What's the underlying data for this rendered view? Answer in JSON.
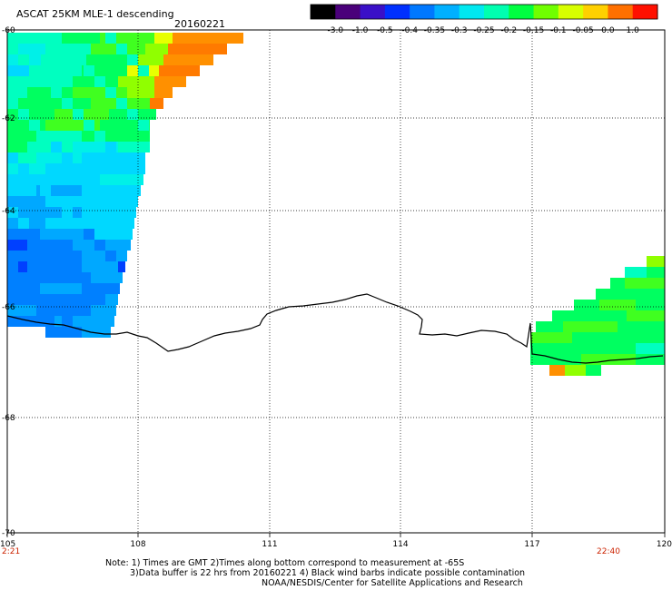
{
  "title": "ASCAT 25KM MLE-1 descending",
  "date": "20160221",
  "colorbar": {
    "labels": [
      "-3.0",
      "-1.0",
      "-0.5",
      "-0.4",
      "-0.35",
      "-0.3",
      "-0.25",
      "-0.2",
      "-0.15",
      "-0.1",
      "-0.05",
      "0.0",
      "1.0"
    ],
    "colors": [
      "#000000",
      "#4a007a",
      "#3a10c8",
      "#0030ff",
      "#0078ff",
      "#00b0ff",
      "#00e8f0",
      "#00ffb0",
      "#00ff40",
      "#70ff00",
      "#d8ff00",
      "#ffd000",
      "#ff7000",
      "#ff1000"
    ]
  },
  "x_ticks": [
    "105",
    "108",
    "111",
    "114",
    "117",
    "120"
  ],
  "y_ticks": [
    "-60",
    "-62",
    "-64",
    "-66",
    "-68",
    "-70"
  ],
  "times": [
    "2:21",
    "22:40"
  ],
  "notes": [
    "Note: 1) Times are GMT 2)Times along bottom correspond to measurement at -65S",
    "3)Data buffer is 22 hrs from 20160221 4) Black wind barbs indicate possible contamination",
    "NOAA/NESDIS/Center for Satellite Applications and Research"
  ]
}
